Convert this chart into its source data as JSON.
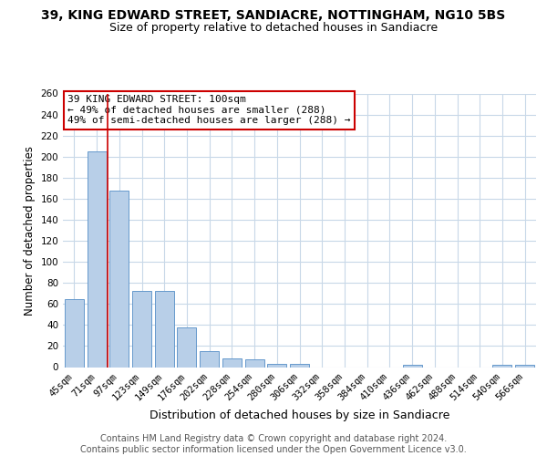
{
  "title": "39, KING EDWARD STREET, SANDIACRE, NOTTINGHAM, NG10 5BS",
  "subtitle": "Size of property relative to detached houses in Sandiacre",
  "xlabel": "Distribution of detached houses by size in Sandiacre",
  "ylabel": "Number of detached properties",
  "categories": [
    "45sqm",
    "71sqm",
    "97sqm",
    "123sqm",
    "149sqm",
    "176sqm",
    "202sqm",
    "228sqm",
    "254sqm",
    "280sqm",
    "306sqm",
    "332sqm",
    "358sqm",
    "384sqm",
    "410sqm",
    "436sqm",
    "462sqm",
    "488sqm",
    "514sqm",
    "540sqm",
    "566sqm"
  ],
  "values": [
    65,
    205,
    168,
    72,
    72,
    38,
    15,
    8,
    7,
    3,
    3,
    0,
    0,
    0,
    0,
    2,
    0,
    0,
    0,
    2,
    2
  ],
  "bar_color": "#b8cfe8",
  "bar_edge_color": "#6699cc",
  "red_line_x": 1.5,
  "red_line_color": "#cc0000",
  "annotation_text": "39 KING EDWARD STREET: 100sqm\n← 49% of detached houses are smaller (288)\n49% of semi-detached houses are larger (288) →",
  "annotation_box_color": "#ffffff",
  "annotation_box_edge": "#cc0000",
  "ylim": [
    0,
    260
  ],
  "yticks": [
    0,
    20,
    40,
    60,
    80,
    100,
    120,
    140,
    160,
    180,
    200,
    220,
    240,
    260
  ],
  "bg_color": "#ffffff",
  "grid_color": "#c8d8e8",
  "footer": "Contains HM Land Registry data © Crown copyright and database right 2024.\nContains public sector information licensed under the Open Government Licence v3.0.",
  "title_fontsize": 10,
  "subtitle_fontsize": 9,
  "xlabel_fontsize": 9,
  "ylabel_fontsize": 8.5,
  "tick_fontsize": 7.5,
  "footer_fontsize": 7,
  "ann_fontsize": 8
}
